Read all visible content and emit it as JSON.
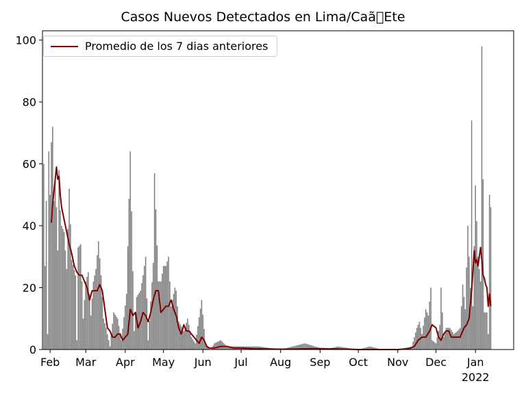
{
  "title": "Casos Nuevos Detectados en Lima/Caã\u0000Ete",
  "chart_data": {
    "type": "bar",
    "title": "Casos Nuevos Detectados en Lima/Caã\u0000Ete",
    "xlabel": "",
    "ylabel": "",
    "ylim": [
      0,
      103
    ],
    "yticks": [
      0,
      20,
      40,
      60,
      80,
      100
    ],
    "xlim": [
      "2021-01-26",
      "2022-01-31"
    ],
    "xtick_labels": [
      {
        "date": "2021-02-01",
        "label": "Feb"
      },
      {
        "date": "2021-03-01",
        "label": "Mar"
      },
      {
        "date": "2021-04-01",
        "label": "Apr"
      },
      {
        "date": "2021-05-01",
        "label": "May"
      },
      {
        "date": "2021-06-01",
        "label": "Jun"
      },
      {
        "date": "2021-07-01",
        "label": "Jul"
      },
      {
        "date": "2021-08-01",
        "label": "Aug"
      },
      {
        "date": "2021-09-01",
        "label": "Sep"
      },
      {
        "date": "2021-10-01",
        "label": "Oct"
      },
      {
        "date": "2021-11-01",
        "label": "Nov"
      },
      {
        "date": "2021-12-01",
        "label": "Dec"
      },
      {
        "date": "2022-01-01",
        "label": "Jan",
        "sublabel": "2022"
      }
    ],
    "grid": false,
    "legend_position": "top-left",
    "series": [
      {
        "name": "",
        "kind": "bar",
        "color": "#808080",
        "anchors": [
          [
            "2021-01-27",
            60
          ],
          [
            "2021-01-28",
            27
          ],
          [
            "2021-01-29",
            48
          ],
          [
            "2021-01-30",
            5
          ],
          [
            "2021-01-31",
            64
          ],
          [
            "2021-02-01",
            50
          ],
          [
            "2021-02-02",
            67
          ],
          [
            "2021-02-03",
            72
          ],
          [
            "2021-02-04",
            48
          ],
          [
            "2021-02-05",
            55
          ],
          [
            "2021-02-06",
            46
          ],
          [
            "2021-02-07",
            32
          ],
          [
            "2021-02-08",
            58
          ],
          [
            "2021-02-09",
            45
          ],
          [
            "2021-02-10",
            40
          ],
          [
            "2021-02-12",
            38
          ],
          [
            "2021-02-14",
            26
          ],
          [
            "2021-02-16",
            52
          ],
          [
            "2021-02-18",
            29
          ],
          [
            "2021-02-21",
            24
          ],
          [
            "2021-02-22",
            3
          ],
          [
            "2021-02-23",
            33
          ],
          [
            "2021-02-25",
            34
          ],
          [
            "2021-02-27",
            10
          ],
          [
            "2021-03-01",
            22
          ],
          [
            "2021-03-03",
            25
          ],
          [
            "2021-03-05",
            11
          ],
          [
            "2021-03-07",
            22
          ],
          [
            "2021-03-09",
            26
          ],
          [
            "2021-03-11",
            35
          ],
          [
            "2021-03-13",
            24
          ],
          [
            "2021-03-15",
            10
          ],
          [
            "2021-03-17",
            7
          ],
          [
            "2021-03-20",
            1
          ],
          [
            "2021-03-23",
            12
          ],
          [
            "2021-03-26",
            10
          ],
          [
            "2021-03-29",
            3
          ],
          [
            "2021-04-02",
            18
          ],
          [
            "2021-04-05",
            64
          ],
          [
            "2021-04-08",
            6
          ],
          [
            "2021-04-10",
            17
          ],
          [
            "2021-04-13",
            19
          ],
          [
            "2021-04-15",
            24
          ],
          [
            "2021-04-17",
            30
          ],
          [
            "2021-04-19",
            3
          ],
          [
            "2021-04-23",
            28
          ],
          [
            "2021-04-24",
            57
          ],
          [
            "2021-04-27",
            22
          ],
          [
            "2021-04-29",
            22
          ],
          [
            "2021-05-01",
            27
          ],
          [
            "2021-05-03",
            27
          ],
          [
            "2021-05-05",
            30
          ],
          [
            "2021-05-07",
            14
          ],
          [
            "2021-05-10",
            20
          ],
          [
            "2021-05-11",
            19
          ],
          [
            "2021-05-13",
            9
          ],
          [
            "2021-05-17",
            6
          ],
          [
            "2021-05-20",
            10
          ],
          [
            "2021-05-23",
            4
          ],
          [
            "2021-05-26",
            2
          ],
          [
            "2021-05-31",
            16
          ],
          [
            "2021-06-03",
            2
          ],
          [
            "2021-06-07",
            0
          ],
          [
            "2021-06-10",
            2
          ],
          [
            "2021-06-15",
            3
          ],
          [
            "2021-06-20",
            1
          ],
          [
            "2021-06-30",
            1
          ],
          [
            "2021-07-15",
            1
          ],
          [
            "2021-08-01",
            0
          ],
          [
            "2021-08-20",
            2
          ],
          [
            "2021-09-05",
            0
          ],
          [
            "2021-09-15",
            1
          ],
          [
            "2021-10-01",
            0
          ],
          [
            "2021-10-10",
            1
          ],
          [
            "2021-10-20",
            0
          ],
          [
            "2021-11-01",
            0
          ],
          [
            "2021-11-12",
            1
          ],
          [
            "2021-11-16",
            7
          ],
          [
            "2021-11-18",
            9
          ],
          [
            "2021-11-20",
            5
          ],
          [
            "2021-11-23",
            13
          ],
          [
            "2021-11-25",
            11
          ],
          [
            "2021-11-27",
            20
          ],
          [
            "2021-11-28",
            3
          ],
          [
            "2021-12-01",
            2
          ],
          [
            "2021-12-04",
            8
          ],
          [
            "2021-12-05",
            20
          ],
          [
            "2021-12-07",
            4
          ],
          [
            "2021-12-09",
            7
          ],
          [
            "2021-12-12",
            7
          ],
          [
            "2021-12-15",
            5
          ],
          [
            "2021-12-18",
            6
          ],
          [
            "2021-12-20",
            7
          ],
          [
            "2021-12-22",
            21
          ],
          [
            "2021-12-24",
            13
          ],
          [
            "2021-12-26",
            40
          ],
          [
            "2021-12-28",
            20
          ],
          [
            "2021-12-29",
            74
          ],
          [
            "2021-12-30",
            14
          ],
          [
            "2022-01-01",
            53
          ],
          [
            "2022-01-03",
            30
          ],
          [
            "2022-01-05",
            22
          ],
          [
            "2022-01-06",
            98
          ],
          [
            "2022-01-08",
            12
          ],
          [
            "2022-01-10",
            12
          ],
          [
            "2022-01-11",
            5
          ],
          [
            "2022-01-12",
            50
          ],
          [
            "2022-01-13",
            46
          ]
        ]
      },
      {
        "name": "Promedio de los 7 dias anteriores",
        "kind": "line",
        "color": "#800000",
        "points": [
          [
            "2021-02-02",
            41
          ],
          [
            "2021-02-03",
            47
          ],
          [
            "2021-02-04",
            51
          ],
          [
            "2021-02-05",
            55
          ],
          [
            "2021-02-06",
            59
          ],
          [
            "2021-02-07",
            55
          ],
          [
            "2021-02-08",
            56
          ],
          [
            "2021-02-09",
            50
          ],
          [
            "2021-02-10",
            46
          ],
          [
            "2021-02-12",
            42
          ],
          [
            "2021-02-14",
            38
          ],
          [
            "2021-02-16",
            34
          ],
          [
            "2021-02-18",
            31
          ],
          [
            "2021-02-20",
            27
          ],
          [
            "2021-02-22",
            25
          ],
          [
            "2021-02-24",
            24
          ],
          [
            "2021-02-26",
            24
          ],
          [
            "2021-02-28",
            22
          ],
          [
            "2021-03-02",
            20
          ],
          [
            "2021-03-04",
            16
          ],
          [
            "2021-03-06",
            19
          ],
          [
            "2021-03-08",
            19
          ],
          [
            "2021-03-10",
            19
          ],
          [
            "2021-03-12",
            21
          ],
          [
            "2021-03-14",
            19
          ],
          [
            "2021-03-16",
            13
          ],
          [
            "2021-03-18",
            7
          ],
          [
            "2021-03-20",
            6
          ],
          [
            "2021-03-22",
            4
          ],
          [
            "2021-03-24",
            4
          ],
          [
            "2021-03-26",
            5
          ],
          [
            "2021-03-28",
            5
          ],
          [
            "2021-03-30",
            3
          ],
          [
            "2021-04-01",
            4
          ],
          [
            "2021-04-03",
            5
          ],
          [
            "2021-04-05",
            13
          ],
          [
            "2021-04-07",
            11
          ],
          [
            "2021-04-09",
            12
          ],
          [
            "2021-04-11",
            7
          ],
          [
            "2021-04-13",
            9
          ],
          [
            "2021-04-15",
            12
          ],
          [
            "2021-04-17",
            11
          ],
          [
            "2021-04-19",
            9
          ],
          [
            "2021-04-21",
            12
          ],
          [
            "2021-04-23",
            16
          ],
          [
            "2021-04-25",
            19
          ],
          [
            "2021-04-27",
            19
          ],
          [
            "2021-04-29",
            12
          ],
          [
            "2021-05-01",
            13
          ],
          [
            "2021-05-03",
            14
          ],
          [
            "2021-05-05",
            14
          ],
          [
            "2021-05-07",
            16
          ],
          [
            "2021-05-09",
            13
          ],
          [
            "2021-05-11",
            11
          ],
          [
            "2021-05-13",
            7
          ],
          [
            "2021-05-15",
            5
          ],
          [
            "2021-05-17",
            8
          ],
          [
            "2021-05-19",
            6
          ],
          [
            "2021-05-21",
            6
          ],
          [
            "2021-05-23",
            5
          ],
          [
            "2021-05-25",
            4
          ],
          [
            "2021-05-27",
            3
          ],
          [
            "2021-05-29",
            2
          ],
          [
            "2021-05-31",
            4
          ],
          [
            "2021-06-02",
            3
          ],
          [
            "2021-06-04",
            1
          ],
          [
            "2021-06-06",
            0.5
          ],
          [
            "2021-06-10",
            0.5
          ],
          [
            "2021-06-15",
            1
          ],
          [
            "2021-06-20",
            1
          ],
          [
            "2021-06-25",
            0.5
          ],
          [
            "2021-07-01",
            0.5
          ],
          [
            "2021-07-10",
            0.3
          ],
          [
            "2021-08-01",
            0.1
          ],
          [
            "2021-09-01",
            0.3
          ],
          [
            "2021-09-15",
            0.2
          ],
          [
            "2021-10-01",
            0
          ],
          [
            "2021-10-15",
            0
          ],
          [
            "2021-11-01",
            0
          ],
          [
            "2021-11-10",
            0.3
          ],
          [
            "2021-11-14",
            1
          ],
          [
            "2021-11-17",
            3
          ],
          [
            "2021-11-20",
            4
          ],
          [
            "2021-11-23",
            4
          ],
          [
            "2021-11-26",
            6
          ],
          [
            "2021-11-28",
            8
          ],
          [
            "2021-12-01",
            7
          ],
          [
            "2021-12-03",
            4
          ],
          [
            "2021-12-05",
            3
          ],
          [
            "2021-12-07",
            5
          ],
          [
            "2021-12-09",
            6
          ],
          [
            "2021-12-11",
            6
          ],
          [
            "2021-12-13",
            4
          ],
          [
            "2021-12-15",
            4
          ],
          [
            "2021-12-17",
            4
          ],
          [
            "2021-12-20",
            4
          ],
          [
            "2021-12-23",
            7
          ],
          [
            "2021-12-25",
            8
          ],
          [
            "2021-12-27",
            10
          ],
          [
            "2021-12-29",
            19
          ],
          [
            "2021-12-31",
            32
          ],
          [
            "2022-01-01",
            28
          ],
          [
            "2022-01-02",
            29
          ],
          [
            "2022-01-03",
            27
          ],
          [
            "2022-01-04",
            30
          ],
          [
            "2022-01-05",
            33
          ],
          [
            "2022-01-06",
            29
          ],
          [
            "2022-01-07",
            24
          ],
          [
            "2022-01-08",
            23
          ],
          [
            "2022-01-09",
            21
          ],
          [
            "2022-01-10",
            20
          ],
          [
            "2022-01-11",
            14
          ],
          [
            "2022-01-12",
            18
          ],
          [
            "2022-01-13",
            14
          ]
        ]
      }
    ]
  },
  "legend": {
    "label": "Promedio de los 7 dias anteriores",
    "color": "#800000"
  }
}
